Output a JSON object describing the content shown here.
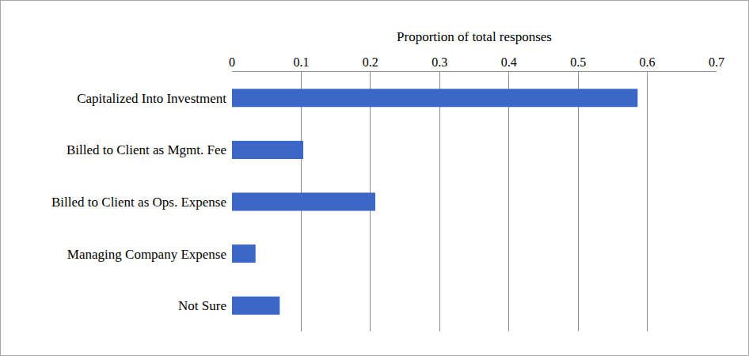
{
  "chart_data": {
    "type": "bar",
    "orientation": "horizontal",
    "title": "Proportion of total responses",
    "categories": [
      "Capitalized Into Investment",
      "Billed to Client as Mgmt. Fee",
      "Billed to Client as Ops. Expense",
      "Managing Company Expense",
      "Not Sure"
    ],
    "values": [
      0.586,
      0.103,
      0.207,
      0.034,
      0.069
    ],
    "color": "#3a67c8",
    "xlim": [
      0,
      0.7
    ],
    "xticks": [
      0,
      0.1,
      0.2,
      0.3,
      0.4,
      0.5,
      0.6,
      0.7
    ],
    "grid": true
  }
}
